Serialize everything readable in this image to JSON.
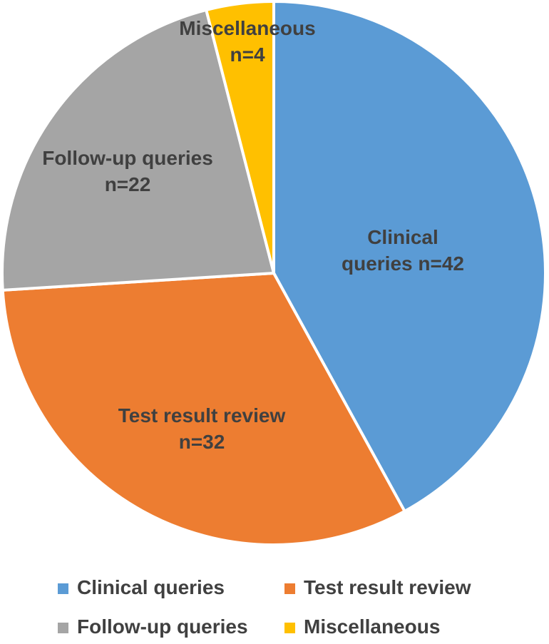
{
  "figure": {
    "background_color": "#ffffff",
    "label_text_color": "#404040",
    "slice_border_color": "#ffffff"
  },
  "chart_data": {
    "type": "pie",
    "title": "",
    "categories": [
      "Clinical queries",
      "Test result review",
      "Follow-up queries",
      "Miscellaneous"
    ],
    "values": [
      42,
      32,
      22,
      4
    ],
    "total": 100,
    "start_angle_deg": 0,
    "direction": "clockwise",
    "slices": [
      {
        "label": "Clinical queries",
        "n": 42,
        "value": 42,
        "color": "#5B9BD5",
        "label_lines": [
          "Clinical",
          "queries n=42"
        ]
      },
      {
        "label": "Test result review",
        "n": 32,
        "value": 32,
        "color": "#ED7D31",
        "label_lines": [
          "Test result review",
          "n=32"
        ]
      },
      {
        "label": "Follow-up queries",
        "n": 22,
        "value": 22,
        "color": "#A5A5A5",
        "label_lines": [
          "Follow-up queries",
          "n=22"
        ]
      },
      {
        "label": "Miscellaneous",
        "n": 4,
        "value": 4,
        "color": "#FFC000",
        "label_lines": [
          "Miscellaneous",
          "n=4"
        ]
      }
    ],
    "legend": {
      "position": "bottom",
      "layout": "2x2",
      "entries": [
        "Clinical queries",
        "Test result review",
        "Follow-up queries",
        "Miscellaneous"
      ]
    }
  }
}
